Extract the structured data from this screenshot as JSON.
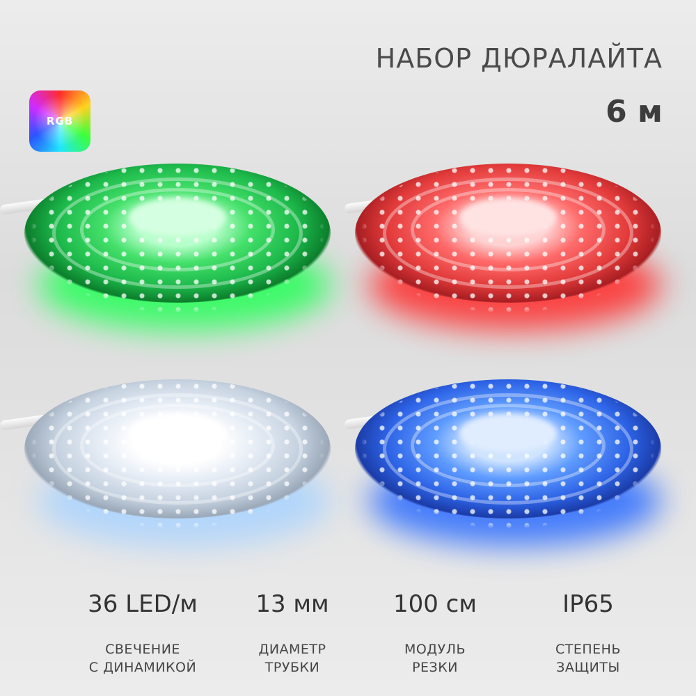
{
  "header": {
    "title": "НАБОР ДЮРАЛАЙТА",
    "length": "6 м",
    "badge": "RGB"
  },
  "colors": {
    "background": "#e4e4e4",
    "green": "#1cb84a",
    "red": "#e23a3a",
    "white": "#e6edf6",
    "blue": "#2d63e6"
  },
  "specs": [
    {
      "value": "36 LED/м",
      "label_line1": "СВЕЧЕНИЕ",
      "label_line2": "С ДИНАМИКОЙ"
    },
    {
      "value": "13 мм",
      "label_line1": "ДИАМЕТР",
      "label_line2": "ТРУБКИ"
    },
    {
      "value": "100 см",
      "label_line1": "МОДУЛЬ",
      "label_line2": "РЕЗКИ"
    },
    {
      "value": "IP65",
      "label_line1": "СТЕПЕНЬ",
      "label_line2": "ЗАЩИТЫ"
    }
  ]
}
